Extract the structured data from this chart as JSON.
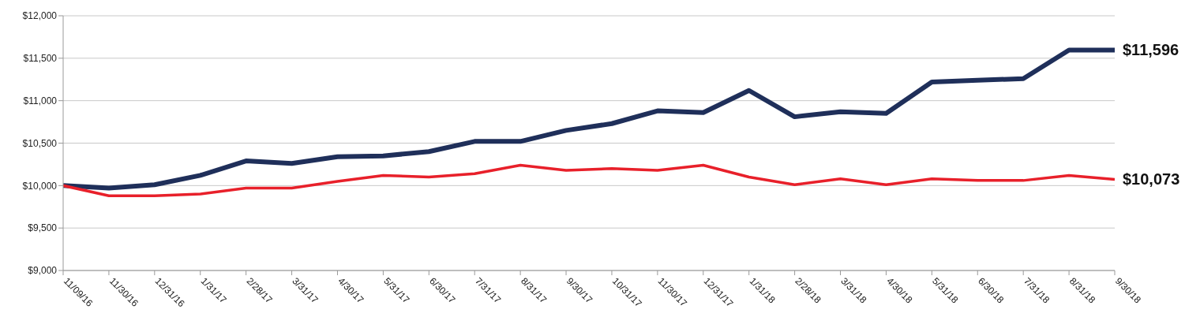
{
  "chart_data": {
    "type": "line",
    "categories": [
      "11/09/16",
      "11/30/16",
      "12/31/16",
      "1/31/17",
      "2/28/17",
      "3/31/17",
      "4/30/17",
      "5/31/17",
      "6/30/17",
      "7/31/17",
      "8/31/17",
      "9/30/17",
      "10/31/17",
      "11/30/17",
      "12/31/17",
      "1/31/18",
      "2/28/18",
      "3/31/18",
      "4/30/18",
      "5/31/18",
      "6/30/18",
      "7/31/18",
      "8/31/18",
      "9/30/18"
    ],
    "series": [
      {
        "color": "#1f2f5a",
        "values": [
          10000,
          9970,
          10010,
          10120,
          10290,
          10260,
          10340,
          10350,
          10400,
          10520,
          10520,
          10650,
          10730,
          10880,
          10860,
          11120,
          10810,
          10870,
          10850,
          11220,
          11240,
          11260,
          11596,
          11596
        ],
        "value_labels": [
          null,
          null,
          null,
          null,
          null,
          null,
          null,
          null,
          null,
          null,
          null,
          null,
          null,
          null,
          null,
          null,
          null,
          null,
          null,
          null,
          null,
          null,
          null,
          "$11,596"
        ]
      },
      {
        "color": "#e8202a",
        "values": [
          10000,
          9880,
          9880,
          9900,
          9970,
          9970,
          10050,
          10120,
          10100,
          10140,
          10240,
          10180,
          10200,
          10180,
          10240,
          10100,
          10010,
          10080,
          10010,
          10080,
          10060,
          10060,
          10120,
          10073
        ],
        "value_labels": [
          null,
          null,
          null,
          null,
          null,
          null,
          null,
          null,
          null,
          null,
          null,
          null,
          null,
          null,
          null,
          null,
          null,
          null,
          null,
          null,
          null,
          null,
          null,
          "$10,073"
        ]
      }
    ],
    "ylim": [
      9000,
      12000
    ],
    "yticks": [
      {
        "value": 9000,
        "label": "$9,000"
      },
      {
        "value": 9500,
        "label": "$9,500"
      },
      {
        "value": 10000,
        "label": "$10,000"
      },
      {
        "value": 10500,
        "label": "$10,500"
      },
      {
        "value": 11000,
        "label": "$11,000"
      },
      {
        "value": 11500,
        "label": "$11,500"
      },
      {
        "value": 12000,
        "label": "$12,000"
      }
    ],
    "grid": "y",
    "marker": "none",
    "line_style": "solid",
    "legend": false
  }
}
